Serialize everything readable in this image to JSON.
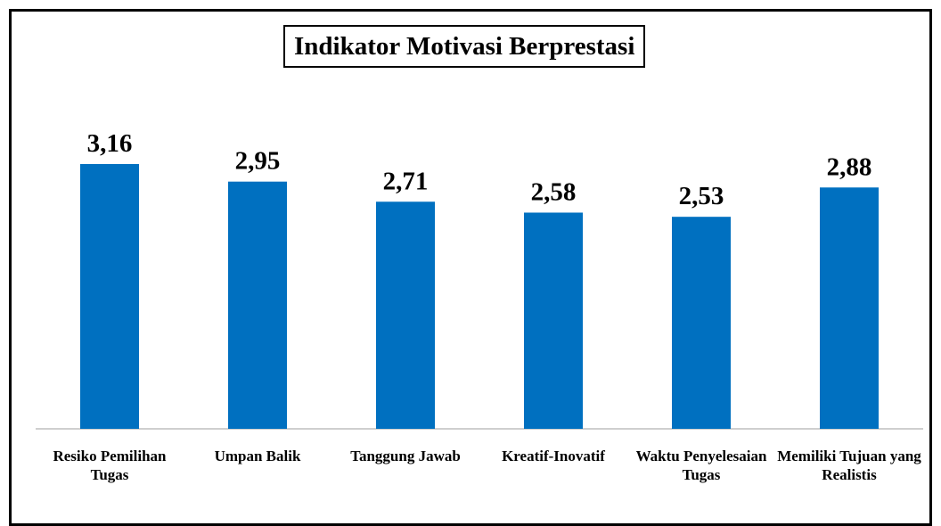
{
  "chart_data": {
    "type": "bar",
    "title": "Indikator Motivasi Berprestasi",
    "categories": [
      "Resiko Pemilihan Tugas",
      "Umpan Balik",
      "Tanggung Jawab",
      "Kreatif-Inovatif",
      "Waktu Penyelesaian Tugas",
      "Memiliki Tujuan yang Realistis"
    ],
    "values": [
      3.16,
      2.95,
      2.71,
      2.58,
      2.53,
      2.88
    ],
    "value_labels": [
      "3,16",
      "2,95",
      "2,71",
      "2,58",
      "2,53",
      "2,88"
    ],
    "color": "#0070c0",
    "ylim": [
      0,
      3.5
    ]
  }
}
